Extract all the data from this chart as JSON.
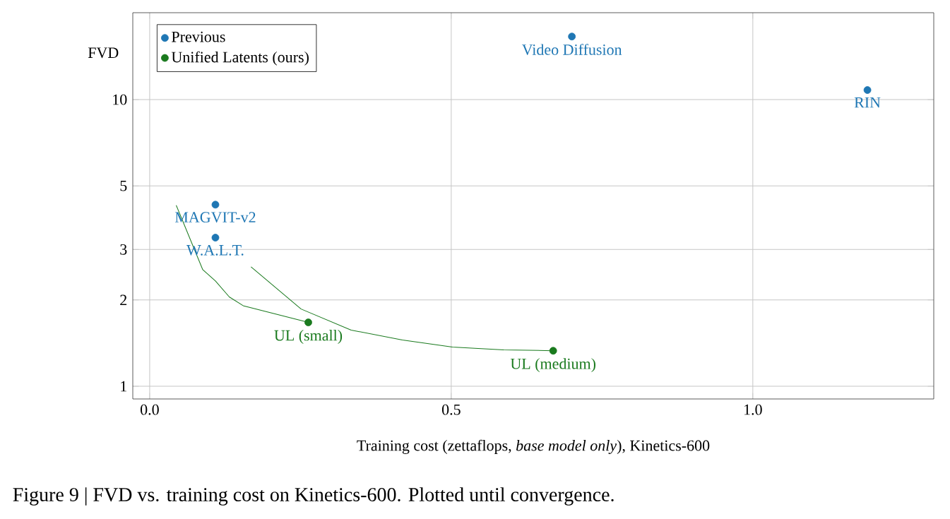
{
  "chart_data": {
    "type": "scatter",
    "xlabel": "Training cost (zettaflops, *base model only*), Kinetics-600",
    "ylabel": "FVD",
    "xlim": [
      -0.028,
      1.3
    ],
    "ylim": [
      0.903,
      20.1
    ],
    "xticks": [
      {
        "value": 0,
        "label": "0.0"
      },
      0.5,
      {
        "value": 1,
        "label": "1.0"
      }
    ],
    "yticks": [
      1,
      2,
      3,
      5,
      10
    ],
    "log": "y",
    "grid": true,
    "legend": "top left",
    "series": [
      {
        "name": "Previous",
        "marker": "circle",
        "color": "#1f77b4",
        "x": [
          0.7,
          1.19,
          0.109,
          0.109
        ],
        "values": [
          16.6,
          10.8,
          4.3,
          3.3
        ]
      },
      {
        "name": "Unified Latents (ours)",
        "marker": "circle",
        "color": "#1a7a1e",
        "x": [
          0.263,
          0.669
        ],
        "values": [
          1.67,
          1.33
        ]
      },
      {
        "type": "line",
        "marker": "none",
        "color": "#1a7a1e",
        "x": [
          0.044,
          0.088,
          0.109,
          0.132,
          0.155,
          0.263
        ],
        "values": [
          4.28,
          2.55,
          2.33,
          2.05,
          1.91,
          1.67
        ]
      },
      {
        "type": "line",
        "marker": "none",
        "color": "#1a7a1e",
        "x": [
          0.168,
          0.251,
          0.334,
          0.419,
          0.502,
          0.587,
          0.669
        ],
        "values": [
          2.61,
          1.86,
          1.57,
          1.45,
          1.37,
          1.34,
          1.33
        ]
      }
    ],
    "annotations": [
      {
        "text": "Video Diffusion",
        "x": 0.7,
        "y": 16.6
      },
      {
        "text": "RIN",
        "x": 1.19,
        "y": 10.8
      },
      {
        "text": "MAGVIT-v2",
        "x": 0.109,
        "y": 4.3
      },
      {
        "text": "W.A.L.T.",
        "x": 0.109,
        "y": 3.3
      },
      {
        "text": "UL (small)",
        "x": 0.263,
        "y": 1.67
      },
      {
        "text": "UL (medium)",
        "x": 0.669,
        "y": 1.33
      },
      "Figure 9 | FVD vs. training cost on Kinetics-600. Plotted until convergence."
    ]
  }
}
